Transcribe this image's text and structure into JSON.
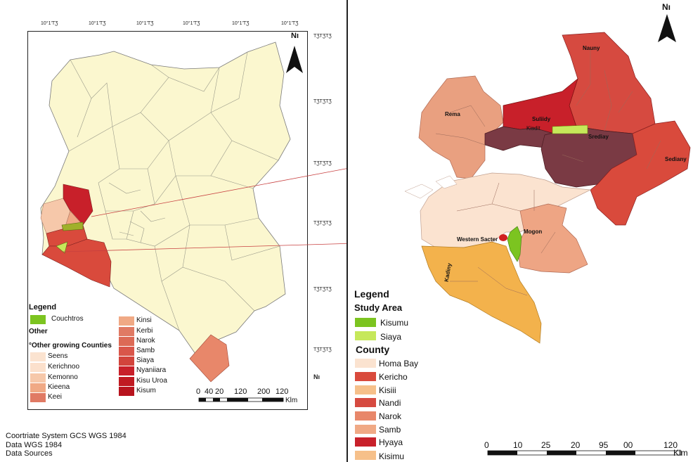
{
  "left_map": {
    "north_label": "Nı",
    "top_ticks": [
      "10°1'TƷ",
      "10°1'TƷ",
      "10°1'TƷ",
      "10°1'TƷ",
      "10°1'TƷ",
      "10°1'TƷ"
    ],
    "right_ticks": [
      "TƷTƷTƷ",
      "TƷTƷTƷ",
      "TƷTƷTƷ",
      "TƷTƷTƷ",
      "TƷTƷTƷ",
      "TƷTƷTƷ",
      "Nı"
    ],
    "legend": {
      "title": "Legend",
      "item1": "Couchtros",
      "other": "Other",
      "other_growing": "°Other growing Counties",
      "col1": [
        "Seens",
        "Kerichnoo",
        "Kemonno",
        "Kieena",
        "Keei"
      ],
      "col2": [
        "Kinsi",
        "Kerbi",
        "Narok",
        "Samb",
        "Siaya",
        "Nyaniiara",
        "Kisu Uroa",
        "Kisum"
      ]
    },
    "scale_labels": [
      "0",
      "40",
      "20",
      "120",
      "200",
      "120"
    ],
    "scale_unit": "Klm",
    "footer": [
      "Coortriate System GCS WGS 1984",
      "Data WGS 1984",
      "Data Sources"
    ]
  },
  "right_map": {
    "north_label": "Nı",
    "region_labels": [
      "Nauny",
      "Rema",
      "Suliidy",
      "Kisdit",
      "Srediay",
      "Sediany",
      "Western Sacter",
      "Mogon",
      "Kadiny"
    ],
    "legend": {
      "title": "Legend",
      "study_area": "Study Area",
      "study_items": [
        "Kisumu",
        "Siaya"
      ],
      "county_title": "County",
      "county_items": [
        "Homa Bay",
        "Kericho",
        "Kisiii",
        "Nandi",
        "Narok",
        "Samb",
        "Hyaya",
        "Kisimu"
      ]
    },
    "scale_labels": [
      "0",
      "10",
      "25",
      "20",
      "95",
      "00",
      "120"
    ],
    "scale_unit": "Klm"
  },
  "colors": {
    "kenya_fill": "#fbf7cf",
    "palest": "#fbe3d0",
    "pale": "#f6c8aa",
    "light_salmon": "#f0a985",
    "salmon": "#e8876a",
    "red": "#d94a3c",
    "deep_red": "#c8202a",
    "maroon": "#7a3a44",
    "orange": "#f3b24c",
    "green": "#7cc420",
    "lime": "#c6e85a"
  }
}
